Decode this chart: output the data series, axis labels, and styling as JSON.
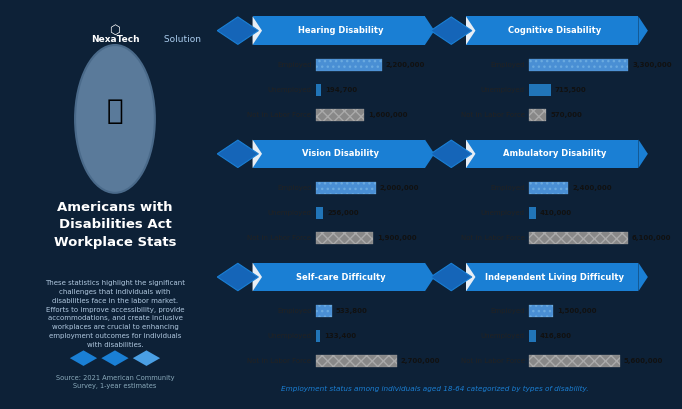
{
  "left_bg": "#0d2137",
  "right_bg": "#e8eef5",
  "footer_note": "Employment status among individuals aged 18-64 categorized by types of disability.",
  "panels": [
    {
      "title": "Hearing Disability",
      "rows": [
        {
          "label": "Employed",
          "value": 2200000,
          "value_str": "2,200,000",
          "bar_color": "#4a8fd4",
          "gray": false
        },
        {
          "label": "Unemployed",
          "value": 194700,
          "value_str": "194,700",
          "bar_color": "#2175b8",
          "gray": false
        },
        {
          "label": "Not in Labor Force",
          "value": 1600000,
          "value_str": "1,600,000",
          "bar_color": "#7a7a7a",
          "gray": true
        }
      ],
      "max_val": 3500000
    },
    {
      "title": "Cognitive Disability",
      "rows": [
        {
          "label": "Employed",
          "value": 3300000,
          "value_str": "3,300,000",
          "bar_color": "#4a8fd4",
          "gray": false
        },
        {
          "label": "Unemployed",
          "value": 715500,
          "value_str": "715,500",
          "bar_color": "#2175b8",
          "gray": false
        },
        {
          "label": "Not in Labor Force",
          "value": 570000,
          "value_str": "570,000",
          "bar_color": "#7a7a7a",
          "gray": true
        }
      ],
      "max_val": 3500000
    },
    {
      "title": "Vision Disability",
      "rows": [
        {
          "label": "Employed",
          "value": 2000000,
          "value_str": "2,000,000",
          "bar_color": "#4a8fd4",
          "gray": false
        },
        {
          "label": "Unemployed",
          "value": 256000,
          "value_str": "256,000",
          "bar_color": "#2175b8",
          "gray": false
        },
        {
          "label": "Not in Labor Force",
          "value": 1900000,
          "value_str": "1,900,000",
          "bar_color": "#7a7a7a",
          "gray": true
        }
      ],
      "max_val": 3500000
    },
    {
      "title": "Ambulatory Disability",
      "rows": [
        {
          "label": "Employed",
          "value": 2400000,
          "value_str": "2,400,000",
          "bar_color": "#4a8fd4",
          "gray": false
        },
        {
          "label": "Unemployed",
          "value": 410000,
          "value_str": "410,000",
          "bar_color": "#2175b8",
          "gray": false
        },
        {
          "label": "Not in Labor Force",
          "value": 6100000,
          "value_str": "6,100,000",
          "bar_color": "#7a7a7a",
          "gray": true
        }
      ],
      "max_val": 6500000
    },
    {
      "title": "Self-care Difficulty",
      "rows": [
        {
          "label": "Employed",
          "value": 533800,
          "value_str": "533,800",
          "bar_color": "#4a8fd4",
          "gray": false
        },
        {
          "label": "Unemployed",
          "value": 133400,
          "value_str": "133,400",
          "bar_color": "#2175b8",
          "gray": false
        },
        {
          "label": "Not in Labor Force",
          "value": 2700000,
          "value_str": "2,700,000",
          "bar_color": "#7a7a7a",
          "gray": true
        }
      ],
      "max_val": 3500000
    },
    {
      "title": "Independent Living Difficulty",
      "rows": [
        {
          "label": "Employed",
          "value": 1500000,
          "value_str": "1,500,000",
          "bar_color": "#4a8fd4",
          "gray": false
        },
        {
          "label": "Unemployed",
          "value": 416800,
          "value_str": "416,800",
          "bar_color": "#2175b8",
          "gray": false
        },
        {
          "label": "Not in Labor Force",
          "value": 5600000,
          "value_str": "5,600,000",
          "bar_color": "#7a7a7a",
          "gray": true
        }
      ],
      "max_val": 6500000
    }
  ]
}
